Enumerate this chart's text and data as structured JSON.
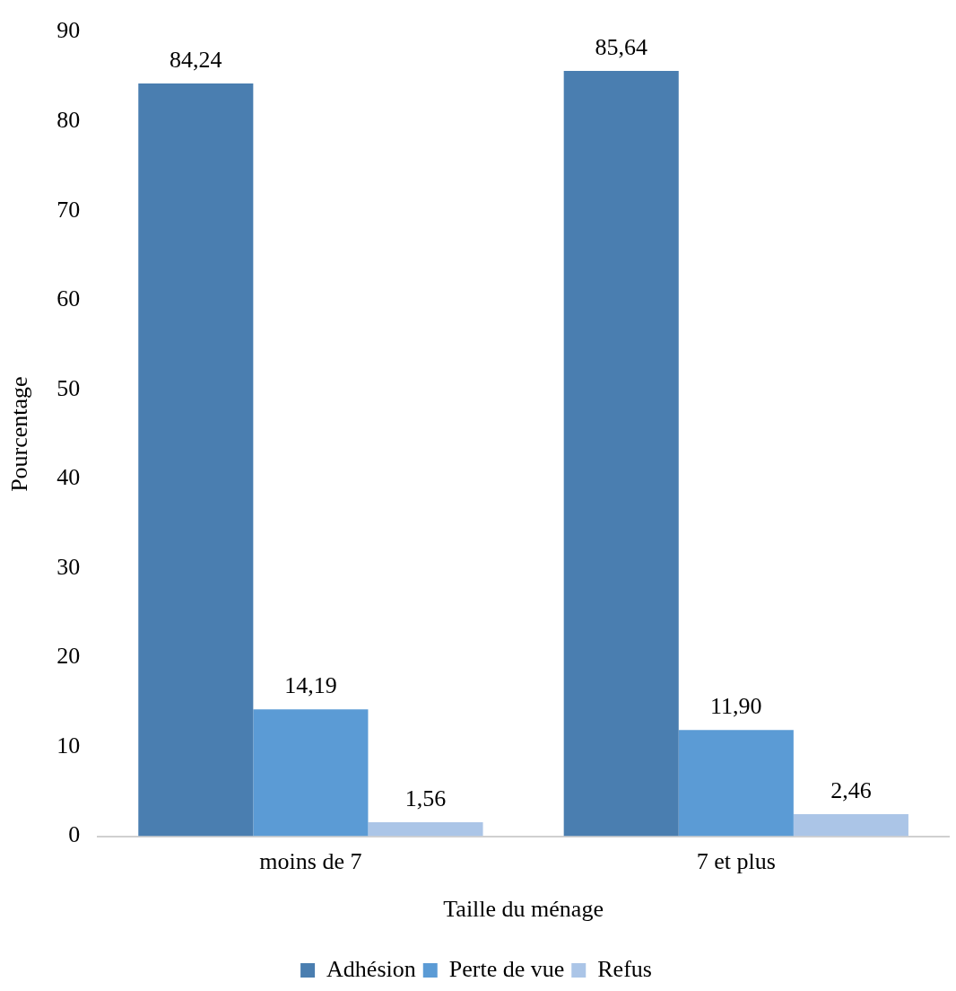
{
  "chart_data": {
    "type": "bar",
    "xlabel": "Taille du ménage",
    "ylabel": "Pourcentage",
    "categories": [
      "moins de 7",
      "7 et plus"
    ],
    "series": [
      {
        "name": "Adhésion",
        "color": "#4a7eb0",
        "values": [
          84.24,
          85.64
        ],
        "value_labels": [
          "84,24",
          "85,64"
        ]
      },
      {
        "name": "Perte de vue",
        "color": "#5b9bd5",
        "values": [
          14.19,
          11.9
        ],
        "value_labels": [
          "14,19",
          "11,90"
        ]
      },
      {
        "name": "Refus",
        "color": "#abc5e7",
        "values": [
          1.56,
          2.46
        ],
        "value_labels": [
          "1,56",
          "2,46"
        ]
      }
    ],
    "ylim": [
      0,
      90
    ],
    "yticks": [
      0,
      10,
      20,
      30,
      40,
      50,
      60,
      70,
      80,
      90
    ],
    "grid": false,
    "legend": "bottom"
  }
}
